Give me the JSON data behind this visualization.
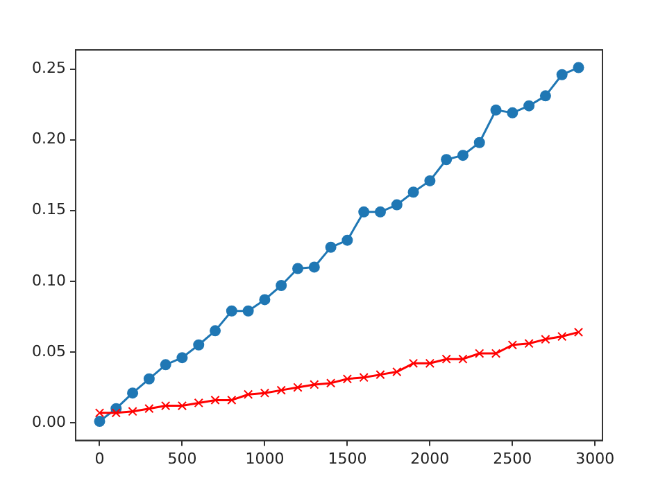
{
  "chart_data": {
    "type": "line",
    "x": [
      0,
      100,
      200,
      300,
      400,
      500,
      600,
      700,
      800,
      900,
      1000,
      1100,
      1200,
      1300,
      1400,
      1500,
      1600,
      1700,
      1800,
      1900,
      2000,
      2100,
      2200,
      2300,
      2400,
      2500,
      2600,
      2700,
      2800,
      2900
    ],
    "series": [
      {
        "color": "#1f77b4",
        "marker": "circle",
        "values": [
          0.001,
          0.01,
          0.021,
          0.031,
          0.041,
          0.046,
          0.055,
          0.065,
          0.079,
          0.079,
          0.087,
          0.097,
          0.109,
          0.11,
          0.124,
          0.129,
          0.149,
          0.149,
          0.154,
          0.163,
          0.171,
          0.186,
          0.189,
          0.198,
          0.221,
          0.219,
          0.224,
          0.231,
          0.246,
          0.251
        ]
      },
      {
        "color": "#ff0000",
        "marker": "cross",
        "values": [
          0.007,
          0.007,
          0.008,
          0.01,
          0.012,
          0.012,
          0.014,
          0.016,
          0.016,
          0.02,
          0.021,
          0.023,
          0.025,
          0.027,
          0.028,
          0.031,
          0.032,
          0.034,
          0.036,
          0.042,
          0.042,
          0.045,
          0.045,
          0.049,
          0.049,
          0.055,
          0.056,
          0.059,
          0.061,
          0.064
        ]
      }
    ],
    "xlim": [
      -145,
      3045
    ],
    "xticks": [
      0,
      500,
      1000,
      1500,
      2000,
      2500,
      3000
    ],
    "ylim": [
      -0.0125,
      0.2635
    ],
    "yticks": [
      {
        "value": 0,
        "label": "0.00"
      },
      {
        "value": 0.05,
        "label": "0.05"
      },
      {
        "value": 0.1,
        "label": "0.10"
      },
      {
        "value": 0.15,
        "label": "0.15"
      },
      {
        "value": 0.2,
        "label": "0.20"
      },
      {
        "value": 0.25,
        "label": "0.25"
      }
    ],
    "grid": false,
    "legend": false
  }
}
